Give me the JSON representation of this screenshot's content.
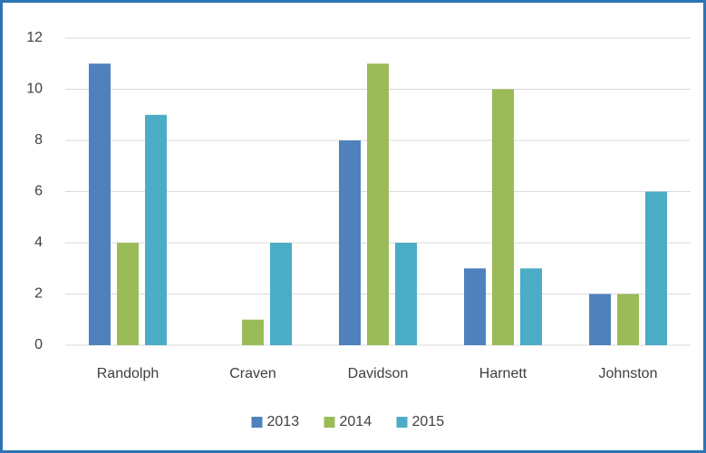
{
  "chart_data": {
    "type": "bar",
    "categories": [
      "Randolph",
      "Craven",
      "Davidson",
      "Harnett",
      "Johnston"
    ],
    "series": [
      {
        "name": "2013",
        "color": "#4f81bd",
        "values": [
          11,
          0,
          8,
          3,
          2
        ]
      },
      {
        "name": "2014",
        "color": "#9bbb59",
        "values": [
          4,
          1,
          11,
          10,
          2
        ]
      },
      {
        "name": "2015",
        "color": "#4bacc6",
        "values": [
          9,
          4,
          4,
          3,
          6
        ]
      }
    ],
    "ylim": [
      0,
      12
    ],
    "yticks": [
      0,
      2,
      4,
      6,
      8,
      10,
      12
    ],
    "grid": true,
    "legend": "bottom"
  }
}
